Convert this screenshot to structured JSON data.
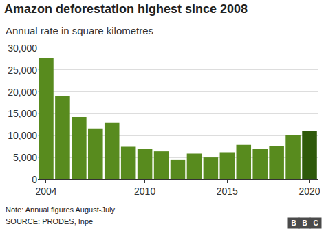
{
  "chart_data": {
    "type": "bar",
    "title": "Amazon deforestation highest since 2008",
    "subtitle": "Annual rate in square kilometres",
    "categories": [
      "2004",
      null,
      null,
      null,
      null,
      null,
      "2010",
      null,
      null,
      null,
      null,
      "2015",
      null,
      null,
      null,
      null,
      "2020"
    ],
    "values": [
      27772,
      19014,
      14286,
      11651,
      12911,
      7464,
      7000,
      6418,
      4571,
      5891,
      5012,
      6207,
      7893,
      6947,
      7536,
      10129,
      11088
    ],
    "colors": [
      "#588b1e",
      "#588b1e",
      "#588b1e",
      "#588b1e",
      "#588b1e",
      "#588b1e",
      "#588b1e",
      "#588b1e",
      "#588b1e",
      "#588b1e",
      "#588b1e",
      "#588b1e",
      "#588b1e",
      "#588b1e",
      "#588b1e",
      "#588b1e",
      "#2f5a0b"
    ],
    "ylim": [
      0,
      30000
    ],
    "yticks": [
      0,
      {
        "value": 5000,
        "label": "5,000"
      },
      {
        "value": 10000,
        "label": "10,000"
      },
      {
        "value": 15000,
        "label": "15,000"
      },
      {
        "value": 20000,
        "label": "20,000"
      },
      {
        "value": 25000,
        "label": "25,000"
      },
      {
        "value": 30000,
        "label": "30,000"
      }
    ],
    "grid": true,
    "note": "Note: Annual figures August-July",
    "source": "SOURCE: PRODES, Inpe",
    "logo": "BBC"
  }
}
